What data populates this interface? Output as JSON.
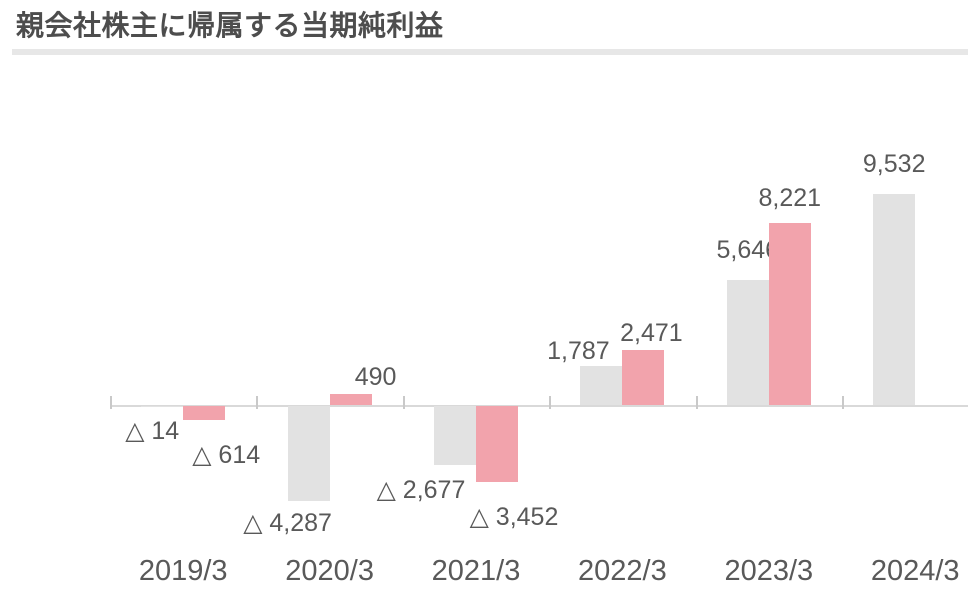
{
  "page": {
    "title": "親会社株主に帰属する当期純利益"
  },
  "chart_data": {
    "type": "bar",
    "title": "親会社株主に帰属する当期純利益",
    "categories": [
      "2019/3",
      "2020/3",
      "2021/3",
      "2022/3",
      "2023/3",
      "2024/3"
    ],
    "series": [
      {
        "name": "gray-series",
        "color": "#e2e2e2",
        "values": [
          -14,
          -4287,
          -2677,
          1787,
          5646,
          9532
        ],
        "labels": [
          "△ 14",
          "△ 4,287",
          "△ 2,677",
          "1,787",
          "5,646",
          "9,532"
        ]
      },
      {
        "name": "pink-series",
        "color": "#f2a3ac",
        "values": [
          -614,
          490,
          -3452,
          2471,
          8221,
          null
        ],
        "labels": [
          "△ 614",
          "490",
          "△ 3,452",
          "2,471",
          "8,221",
          null
        ]
      }
    ],
    "negative_prefix": "△",
    "xlabel": "",
    "ylabel": "",
    "ylim": [
      -5000,
      10500
    ],
    "grid": false,
    "legend": "none",
    "colors": {
      "label_text": "#595959",
      "axis_label_text": "#595959",
      "title_text": "#4d4d4d",
      "axis_line": "#d9d9d9",
      "tick": "#c9c9c9",
      "divider": "#e7e7e7"
    }
  }
}
